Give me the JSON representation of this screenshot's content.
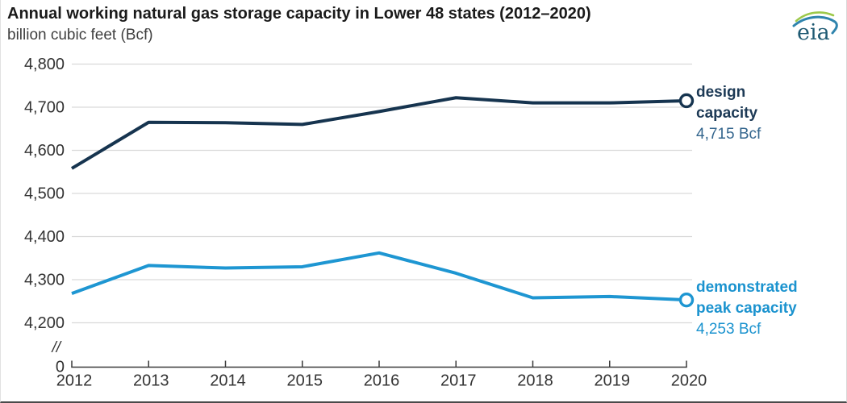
{
  "header": {
    "title": "Annual working natural gas storage capacity in Lower 48 states (2012–2020)",
    "subtitle": "billion cubic feet (Bcf)",
    "logo_text": "eia"
  },
  "chart_data": {
    "type": "line",
    "title": "Annual working natural gas storage capacity in Lower 48 states (2012–2020)",
    "ylabel": "billion cubic feet (Bcf)",
    "x": [
      2012,
      2013,
      2014,
      2015,
      2016,
      2017,
      2018,
      2019,
      2020
    ],
    "x_tick_labels": [
      "2012",
      "2013",
      "2014",
      "2015",
      "2016",
      "2017",
      "2018",
      "2019",
      "2020"
    ],
    "series": [
      {
        "name": "design capacity",
        "color": "#16344f",
        "values": [
          4558,
          4665,
          4664,
          4660,
          4690,
          4722,
          4710,
          4710,
          4715
        ],
        "end_value_label": "4,715 Bcf"
      },
      {
        "name": "demonstrated peak capacity",
        "color": "#1e96d2",
        "values": [
          4268,
          4333,
          4327,
          4330,
          4362,
          4315,
          4258,
          4261,
          4253
        ],
        "end_value_label": "4,253 Bcf"
      }
    ],
    "y_ticks": [
      {
        "value": 4800,
        "label": "4,800"
      },
      {
        "value": 4700,
        "label": "4,700"
      },
      {
        "value": 4600,
        "label": "4,600"
      },
      {
        "value": 4500,
        "label": "4,500"
      },
      {
        "value": 4400,
        "label": "4,400"
      },
      {
        "value": 4300,
        "label": "4,300"
      },
      {
        "value": 4200,
        "label": "4,200"
      }
    ],
    "y_zero_label": "0",
    "y_axis_break_symbol": "//",
    "ylim_display": [
      4200,
      4800
    ],
    "grid": true,
    "legend_position": "right-of-line-end",
    "colors": {
      "grid": "#d9d9d9",
      "axis": "#3a3a3a",
      "tick_text": "#333333",
      "design_value_text": "#33658d",
      "demo_value_text": "#1b93cf",
      "design_label_text": "#1d3a56"
    }
  },
  "annotations": {
    "design": {
      "line1": "design",
      "line2": "capacity",
      "value": "4,715 Bcf"
    },
    "demonstrated": {
      "line1": "demonstrated",
      "line2": "peak capacity",
      "value": "4,253 Bcf"
    }
  }
}
